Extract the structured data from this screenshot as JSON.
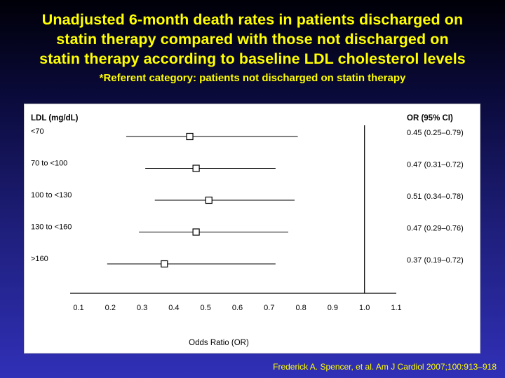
{
  "slide": {
    "title_lines": [
      "Unadjusted 6-month death rates in patients discharged on",
      "statin therapy compared with those not discharged on",
      "statin therapy according to baseline LDL cholesterol levels"
    ],
    "subtitle": "*Referent category: patients not discharged on statin therapy",
    "citation": "Frederick A. Spencer, et al. Am J Cardiol 2007;100:913–918"
  },
  "chart_data": {
    "type": "forest",
    "category_header": "LDL (mg/dL)",
    "estimate_header": "OR (95% CI)",
    "xlabel": "Odds Ratio (OR)",
    "xlim": [
      0.1,
      1.1
    ],
    "xticks": [
      "0.1",
      "0.2",
      "0.3",
      "0.4",
      "0.5",
      "0.6",
      "0.7",
      "0.8",
      "0.9",
      "1.0",
      "1.1"
    ],
    "reference_line": 1.0,
    "rows": [
      {
        "label": "<70",
        "or": 0.45,
        "lo": 0.25,
        "hi": 0.79,
        "text": "0.45 (0.25–0.79)"
      },
      {
        "label": "70 to <100",
        "or": 0.47,
        "lo": 0.31,
        "hi": 0.72,
        "text": "0.47 (0.31–0.72)"
      },
      {
        "label": "100 to <130",
        "or": 0.51,
        "lo": 0.34,
        "hi": 0.78,
        "text": "0.51 (0.34–0.78)"
      },
      {
        "label": "130 to <160",
        "or": 0.47,
        "lo": 0.29,
        "hi": 0.76,
        "text": "0.47 (0.29–0.76)"
      },
      {
        "label": ">160",
        "or": 0.37,
        "lo": 0.19,
        "hi": 0.72,
        "text": "0.37 (0.19–0.72)"
      }
    ]
  }
}
